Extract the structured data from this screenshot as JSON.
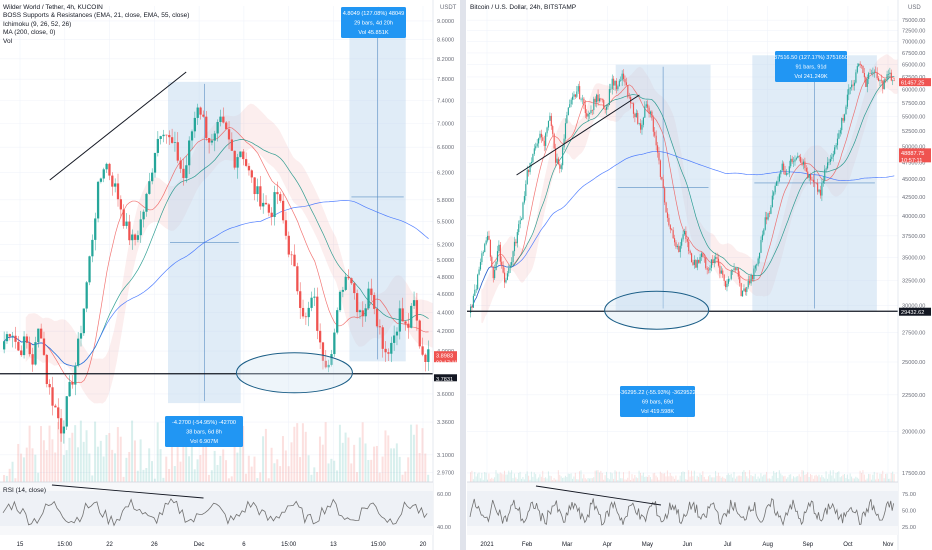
{
  "colors": {
    "up": "#26a69a",
    "down": "#ef5350",
    "ema21": "#ef5350",
    "ema55": "#00897b",
    "ma200": "#2962ff",
    "rsi": "#707070",
    "range_box": "#bbd5ee",
    "ellipse": "#1b5e87",
    "support": "#131722",
    "price_tag": "#ef5350",
    "support_tag": "#131722",
    "info_box": "#2196f3"
  },
  "left_panel": {
    "title": "Wilder World / Tether, 4h, KUCOIN",
    "indicators": [
      "BOSS Supports & Resistances (EMA, 21, close, EMA, 55, close)",
      "Ichimoku (9, 26, 52, 26)",
      "MA (200, close, 0)",
      "Vol"
    ],
    "currency": "USDT",
    "rsi_label": "RSI (14, close)",
    "price_tag": {
      "value": "3.8983",
      "time": "02:17:11"
    },
    "support_tag": "3.7831",
    "info_top": {
      "line1": "4.8049 (127.08%) 48049",
      "line2": "29 bars, 4d 20h",
      "line3": "Vol 45.851K"
    },
    "info_bottom": {
      "line1": "-4.2700 (-54.95%) -42700",
      "line2": "38 bars, 6d 8h",
      "line3": "Vol 6.907M"
    }
  },
  "right_panel": {
    "title": "Bitcoin / U.S. Dollar, 24h, BITSTAMP",
    "currency": "USD",
    "price_tag": {
      "value": "61457.25"
    },
    "mid_tag": {
      "value": "48887.75",
      "time": "10:57:11"
    },
    "support_tag": "29432.62",
    "info_top": {
      "line1": "37516.50 (127.17%) 3751650",
      "line2": "91 bars, 91d",
      "line3": "Vol 241.249K"
    },
    "info_bottom": {
      "line1": "-36295.22 (-55.93%) -3629522",
      "line2": "69 bars, 69d",
      "line3": "Vol 419.598K"
    }
  },
  "chart_data": [
    {
      "type": "candlestick",
      "title": "Wilder World / Tether, 4h, KUCOIN",
      "y_scale": "log",
      "y_ticks": [
        "9.0000",
        "8.6000",
        "8.2000",
        "7.8000",
        "7.4000",
        "7.0000",
        "6.6000",
        "6.2000",
        "5.8000",
        "5.5000",
        "5.2000",
        "5.0000",
        "4.8000",
        "4.6000",
        "4.4000",
        "4.2000",
        "4.0000",
        "3.6000",
        "3.3600",
        "3.1000",
        "2.9700"
      ],
      "x_ticks": [
        "15",
        "15:00",
        "22",
        "26",
        "Dec",
        "6",
        "15:00",
        "13",
        "15:00",
        "20"
      ],
      "ylim": [
        2.9,
        9.2
      ],
      "support": 3.7831,
      "last": 3.8983,
      "close_path": [
        4.1,
        4.25,
        4.0,
        4.1,
        3.9,
        4.3,
        3.7,
        3.5,
        3.3,
        3.6,
        3.9,
        4.4,
        5.1,
        5.9,
        6.4,
        6.1,
        5.8,
        5.4,
        5.2,
        5.5,
        5.9,
        6.6,
        7.0,
        6.7,
        6.5,
        6.1,
        6.8,
        7.4,
        6.9,
        6.6,
        7.0,
        6.8,
        6.4,
        6.6,
        6.2,
        5.9,
        5.8,
        5.6,
        5.9,
        5.4,
        5.0,
        4.6,
        4.3,
        4.6,
        4.0,
        3.9,
        4.2,
        4.7,
        4.9,
        4.5,
        4.4,
        4.7,
        4.3,
        4.0,
        4.1,
        4.4,
        4.2,
        4.5,
        4.0,
        3.95
      ],
      "rsi_ticks": [
        "60.00",
        "40.00"
      ],
      "ranges": [
        {
          "change": "-4.2700 (-54.95%)",
          "bars": 38,
          "duration": "6d 8h",
          "volume": "6.907M"
        },
        {
          "change": "4.8049 (127.08%)",
          "bars": 29,
          "duration": "4d 20h",
          "volume": "45.851K"
        }
      ]
    },
    {
      "type": "candlestick",
      "title": "Bitcoin / U.S. Dollar, 24h, BITSTAMP",
      "y_scale": "log",
      "y_ticks": [
        "75000.00",
        "72500.00",
        "70000.00",
        "67500.00",
        "65000.00",
        "62500.00",
        "60000.00",
        "57500.00",
        "55000.00",
        "52500.00",
        "50000.00",
        "47500.00",
        "45000.00",
        "42500.00",
        "40000.00",
        "37500.00",
        "35000.00",
        "32500.00",
        "30000.00",
        "27500.00",
        "25000.00",
        "22500.00",
        "20000.00",
        "17500.00"
      ],
      "x_ticks": [
        "2021",
        "Feb",
        "Mar",
        "Apr",
        "May",
        "Jun",
        "Jul",
        "Aug",
        "Sep",
        "Oct",
        "Nov"
      ],
      "ylim": [
        17000,
        77000
      ],
      "support": 29432.62,
      "last": 61457.25,
      "close_path": [
        29500,
        32000,
        35000,
        38000,
        33000,
        36000,
        32500,
        34000,
        37000,
        40000,
        46000,
        48000,
        52000,
        50000,
        56000,
        48000,
        47000,
        55000,
        58000,
        60000,
        57000,
        55000,
        58000,
        59000,
        56000,
        62000,
        60000,
        63000,
        58000,
        56000,
        53000,
        57000,
        55000,
        49000,
        44000,
        39000,
        37000,
        36000,
        38000,
        35000,
        34000,
        36000,
        33000,
        35000,
        34000,
        32000,
        33000,
        34000,
        31000,
        32000,
        33000,
        35000,
        39000,
        41000,
        44000,
        47000,
        46000,
        48000,
        49000,
        47000,
        45000,
        44000,
        43000,
        47000,
        48000,
        52000,
        55000,
        60000,
        62000,
        66000,
        61000,
        64000,
        62000,
        61000,
        63000,
        61500
      ],
      "rsi_ticks": [
        "75.00",
        "50.00",
        "25.00"
      ],
      "ranges": [
        {
          "change": "-36295.22 (-55.93%)",
          "bars": 69,
          "duration": "69d",
          "volume": "419.598K"
        },
        {
          "change": "37516.50 (127.17%)",
          "bars": 91,
          "duration": "91d",
          "volume": "241.249K"
        }
      ]
    }
  ]
}
